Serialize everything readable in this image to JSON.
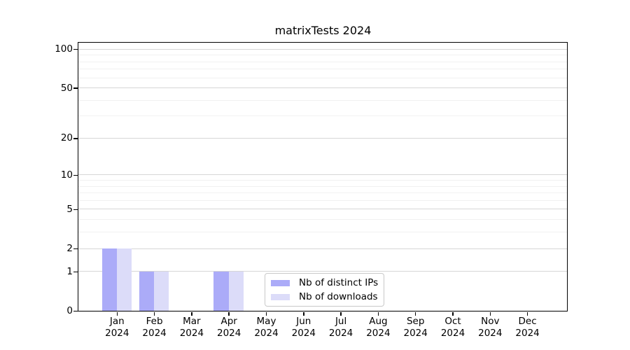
{
  "window": {
    "background": "#ffffff"
  },
  "chart_data": {
    "type": "bar",
    "title": "matrixTests 2024",
    "categories": [
      "Jan",
      "Feb",
      "Mar",
      "Apr",
      "May",
      "Jun",
      "Jul",
      "Aug",
      "Sep",
      "Oct",
      "Nov",
      "Dec"
    ],
    "category_sublabel": "2024",
    "series": [
      {
        "name": "Nb of distinct IPs",
        "color": "#ababf8",
        "values": [
          2,
          1,
          0,
          1,
          0,
          0,
          0,
          0,
          0,
          0,
          0,
          0
        ]
      },
      {
        "name": "Nb of downloads",
        "color": "#dcdcf9",
        "values": [
          2,
          1,
          0,
          1,
          0,
          0,
          0,
          0,
          0,
          0,
          0,
          0
        ]
      }
    ],
    "xlabel": "",
    "ylabel": "",
    "y_axis": {
      "scale": "log1p",
      "tick_values": [
        0,
        1,
        2,
        5,
        10,
        20,
        50,
        100
      ],
      "tick_labels": [
        "0",
        "1",
        "2",
        "5",
        "10",
        "20",
        "50",
        "100"
      ],
      "minor_gridline_values": [
        3,
        4,
        6,
        7,
        8,
        9,
        30,
        40,
        60,
        70,
        80,
        90
      ],
      "ylim": [
        0,
        112
      ]
    },
    "grid": {
      "horizontal": true,
      "major_color": "#d6d6d6",
      "minor_color": "#f1f1f1"
    },
    "legend": {
      "position": "inside-lower-center",
      "entries": [
        "Nb of distinct IPs",
        "Nb of downloads"
      ]
    }
  }
}
